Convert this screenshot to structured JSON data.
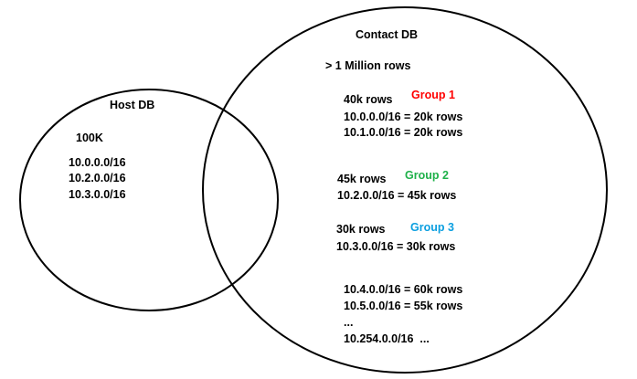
{
  "host_db": {
    "title": "Host DB",
    "count": "100K",
    "subnets": [
      "10.0.0.0/16",
      "10.2.0.0/16",
      "10.3.0.0/16"
    ]
  },
  "contact_db": {
    "title": "Contact DB",
    "total": "> 1 Million rows",
    "groups": [
      {
        "label": "Group 1",
        "color": "#ff0000",
        "rows": "40k rows",
        "lines": [
          "10.0.0.0/16 = 20k rows",
          "10.1.0.0/16 = 20k rows"
        ]
      },
      {
        "label": "Group 2",
        "color": "#1fb14a",
        "rows": "45k rows",
        "lines": [
          "10.2.0.0/16 = 45k rows"
        ]
      },
      {
        "label": "Group 3",
        "color": "#0b9fe0",
        "rows": "30k rows",
        "lines": [
          "10.3.0.0/16 = 30k rows"
        ]
      }
    ],
    "others": [
      "10.4.0.0/16 = 60k rows",
      "10.5.0.0/16 = 55k rows",
      "...",
      "10.254.0.0/16  ..."
    ]
  }
}
